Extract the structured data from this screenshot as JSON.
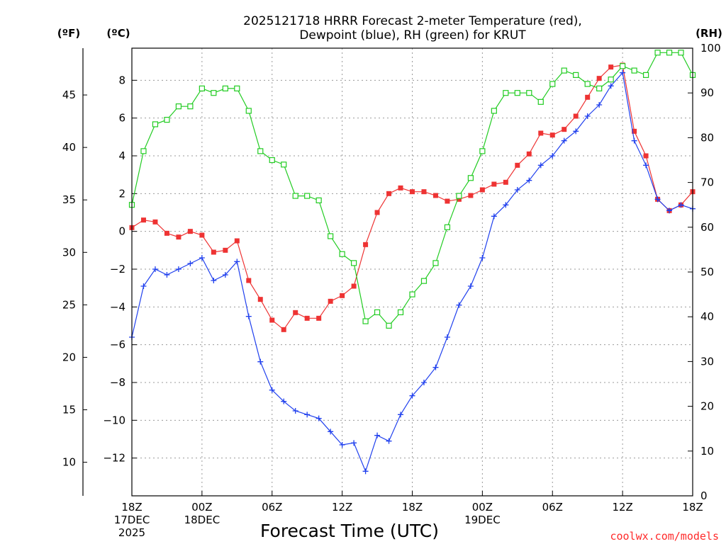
{
  "chart_data": {
    "type": "line",
    "title": [
      "2025121718 HRRR Forecast 2-meter Temperature (red),",
      "Dewpoint (blue), RH (green) for KRUT"
    ],
    "xlabel": "Forecast Time (UTC)",
    "credit": "coolwx.com/models",
    "units": {
      "fahrenheit": "(ºF)",
      "celsius": "(ºC)",
      "rh": "(RH)"
    },
    "x_hours": [
      0,
      1,
      2,
      3,
      4,
      5,
      6,
      7,
      8,
      9,
      10,
      11,
      12,
      13,
      14,
      15,
      16,
      17,
      18,
      19,
      20,
      21,
      22,
      23,
      24,
      25,
      26,
      27,
      28,
      29,
      30,
      31,
      32,
      33,
      34,
      35,
      36,
      37,
      38,
      39,
      40,
      41,
      42,
      43,
      44,
      45,
      46,
      47,
      48
    ],
    "xlim": [
      0,
      48
    ],
    "x_ticks": [
      {
        "hour": 0,
        "lines": [
          "18Z",
          "17DEC",
          "2025"
        ]
      },
      {
        "hour": 6,
        "lines": [
          "00Z",
          "18DEC"
        ]
      },
      {
        "hour": 12,
        "lines": [
          "06Z"
        ]
      },
      {
        "hour": 18,
        "lines": [
          "12Z"
        ]
      },
      {
        "hour": 24,
        "lines": [
          "18Z"
        ]
      },
      {
        "hour": 30,
        "lines": [
          "00Z",
          "19DEC"
        ]
      },
      {
        "hour": 36,
        "lines": [
          "06Z"
        ]
      },
      {
        "hour": 42,
        "lines": [
          "12Z"
        ]
      },
      {
        "hour": 48,
        "lines": [
          "18Z"
        ]
      }
    ],
    "celsius_axis": {
      "ylim": [
        -14,
        9.7
      ],
      "ticks": [
        -12,
        -10,
        -8,
        -6,
        -4,
        -2,
        0,
        2,
        4,
        6,
        8
      ],
      "labels": [
        "−12",
        "−10",
        "−8",
        "−6",
        "−4",
        "−2",
        "0",
        "2",
        "4",
        "6",
        "8"
      ]
    },
    "fahrenheit_axis": {
      "ticks": [
        10,
        15,
        20,
        25,
        30,
        35,
        40,
        45
      ],
      "labels": [
        "10",
        "15",
        "20",
        "25",
        "30",
        "35",
        "40",
        "45"
      ]
    },
    "rh_axis": {
      "ylim": [
        0,
        100
      ],
      "ticks": [
        0,
        10,
        20,
        30,
        40,
        50,
        60,
        70,
        80,
        90,
        100
      ],
      "labels": [
        "0",
        "10",
        "20",
        "30",
        "40",
        "50",
        "60",
        "70",
        "80",
        "90",
        "100"
      ]
    },
    "series": [
      {
        "name": "Temperature",
        "unit": "C",
        "color": "#ee3333",
        "marker": "filled-square",
        "values": [
          0.2,
          0.6,
          0.5,
          -0.1,
          -0.3,
          0.0,
          -0.2,
          -1.1,
          -1.0,
          -0.5,
          -2.6,
          -3.6,
          -4.7,
          -5.2,
          -4.3,
          -4.6,
          -4.6,
          -3.7,
          -3.4,
          -2.9,
          -0.7,
          1.0,
          2.0,
          2.3,
          2.1,
          2.1,
          1.9,
          1.6,
          1.7,
          1.9,
          2.2,
          2.5,
          2.6,
          3.5,
          4.1,
          5.2,
          5.1,
          5.4,
          6.1,
          7.1,
          8.1,
          8.7,
          8.8,
          5.3,
          4.0,
          1.7,
          1.1,
          1.4,
          2.1
        ]
      },
      {
        "name": "Dewpoint",
        "unit": "C",
        "color": "#2040ee",
        "marker": "plus",
        "values": [
          -5.6,
          -2.9,
          -2.0,
          -2.3,
          -2.0,
          -1.7,
          -1.4,
          -2.6,
          -2.3,
          -1.6,
          -4.5,
          -6.9,
          -8.4,
          -9.0,
          -9.5,
          -9.7,
          -9.9,
          -10.6,
          -11.3,
          -11.2,
          -12.7,
          -10.8,
          -11.1,
          -9.7,
          -8.7,
          -8.0,
          -7.2,
          -5.6,
          -3.9,
          -2.9,
          -1.4,
          0.8,
          1.4,
          2.2,
          2.7,
          3.5,
          4.0,
          4.8,
          5.3,
          6.1,
          6.7,
          7.7,
          8.4,
          4.8,
          3.5,
          1.7,
          1.1,
          1.4,
          1.2
        ]
      },
      {
        "name": "RH",
        "unit": "%",
        "color": "#22cc22",
        "marker": "open-square",
        "values": [
          65,
          77,
          83,
          84,
          87,
          87,
          91,
          90,
          91,
          91,
          86,
          77,
          75,
          74,
          67,
          67,
          66,
          58,
          54,
          52,
          39,
          41,
          38,
          41,
          45,
          48,
          52,
          60,
          67,
          71,
          77,
          86,
          90,
          90,
          90,
          88,
          92,
          95,
          94,
          92,
          91,
          93,
          96,
          95,
          94,
          99,
          99,
          99,
          94
        ]
      }
    ]
  }
}
